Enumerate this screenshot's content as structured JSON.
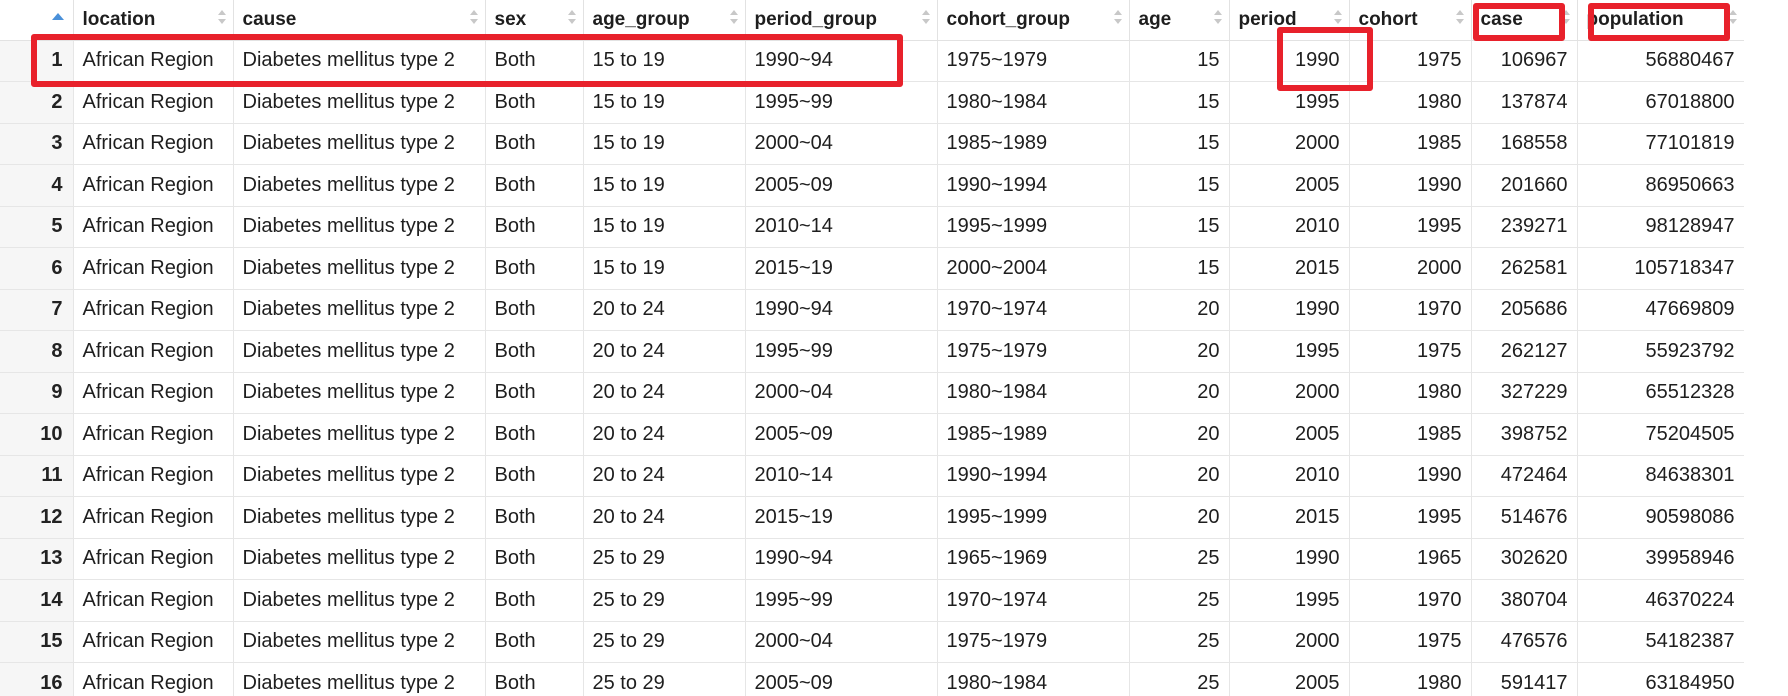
{
  "columns": [
    {
      "label": "",
      "sort": "asc"
    },
    {
      "label": "location"
    },
    {
      "label": "cause"
    },
    {
      "label": "sex"
    },
    {
      "label": "age_group"
    },
    {
      "label": "period_group"
    },
    {
      "label": "cohort_group"
    },
    {
      "label": "age"
    },
    {
      "label": "period"
    },
    {
      "label": "cohort"
    },
    {
      "label": "case"
    },
    {
      "label": "population"
    }
  ],
  "rows": [
    [
      "1",
      "African Region",
      "Diabetes mellitus type 2",
      "Both",
      "15 to 19",
      "1990~94",
      "1975~1979",
      "15",
      "1990",
      "1975",
      "106967",
      "56880467"
    ],
    [
      "2",
      "African Region",
      "Diabetes mellitus type 2",
      "Both",
      "15 to 19",
      "1995~99",
      "1980~1984",
      "15",
      "1995",
      "1980",
      "137874",
      "67018800"
    ],
    [
      "3",
      "African Region",
      "Diabetes mellitus type 2",
      "Both",
      "15 to 19",
      "2000~04",
      "1985~1989",
      "15",
      "2000",
      "1985",
      "168558",
      "77101819"
    ],
    [
      "4",
      "African Region",
      "Diabetes mellitus type 2",
      "Both",
      "15 to 19",
      "2005~09",
      "1990~1994",
      "15",
      "2005",
      "1990",
      "201660",
      "86950663"
    ],
    [
      "5",
      "African Region",
      "Diabetes mellitus type 2",
      "Both",
      "15 to 19",
      "2010~14",
      "1995~1999",
      "15",
      "2010",
      "1995",
      "239271",
      "98128947"
    ],
    [
      "6",
      "African Region",
      "Diabetes mellitus type 2",
      "Both",
      "15 to 19",
      "2015~19",
      "2000~2004",
      "15",
      "2015",
      "2000",
      "262581",
      "105718347"
    ],
    [
      "7",
      "African Region",
      "Diabetes mellitus type 2",
      "Both",
      "20 to 24",
      "1990~94",
      "1970~1974",
      "20",
      "1990",
      "1970",
      "205686",
      "47669809"
    ],
    [
      "8",
      "African Region",
      "Diabetes mellitus type 2",
      "Both",
      "20 to 24",
      "1995~99",
      "1975~1979",
      "20",
      "1995",
      "1975",
      "262127",
      "55923792"
    ],
    [
      "9",
      "African Region",
      "Diabetes mellitus type 2",
      "Both",
      "20 to 24",
      "2000~04",
      "1980~1984",
      "20",
      "2000",
      "1980",
      "327229",
      "65512328"
    ],
    [
      "10",
      "African Region",
      "Diabetes mellitus type 2",
      "Both",
      "20 to 24",
      "2005~09",
      "1985~1989",
      "20",
      "2005",
      "1985",
      "398752",
      "75204505"
    ],
    [
      "11",
      "African Region",
      "Diabetes mellitus type 2",
      "Both",
      "20 to 24",
      "2010~14",
      "1990~1994",
      "20",
      "2010",
      "1990",
      "472464",
      "84638301"
    ],
    [
      "12",
      "African Region",
      "Diabetes mellitus type 2",
      "Both",
      "20 to 24",
      "2015~19",
      "1995~1999",
      "20",
      "2015",
      "1995",
      "514676",
      "90598086"
    ],
    [
      "13",
      "African Region",
      "Diabetes mellitus type 2",
      "Both",
      "25 to 29",
      "1990~94",
      "1965~1969",
      "25",
      "1990",
      "1965",
      "302620",
      "39958946"
    ],
    [
      "14",
      "African Region",
      "Diabetes mellitus type 2",
      "Both",
      "25 to 29",
      "1995~99",
      "1970~1974",
      "25",
      "1995",
      "1970",
      "380704",
      "46370224"
    ],
    [
      "15",
      "African Region",
      "Diabetes mellitus type 2",
      "Both",
      "25 to 29",
      "2000~04",
      "1975~1979",
      "25",
      "2000",
      "1975",
      "476576",
      "54182387"
    ],
    [
      "16",
      "African Region",
      "Diabetes mellitus type 2",
      "Both",
      "25 to 29",
      "2005~09",
      "1980~1984",
      "25",
      "2005",
      "1980",
      "591417",
      "63184950"
    ]
  ],
  "colors": {
    "highlight": "#e8212b",
    "sort_indicator": "#4a90d9",
    "rownum_bg": "#f6f6f6"
  }
}
